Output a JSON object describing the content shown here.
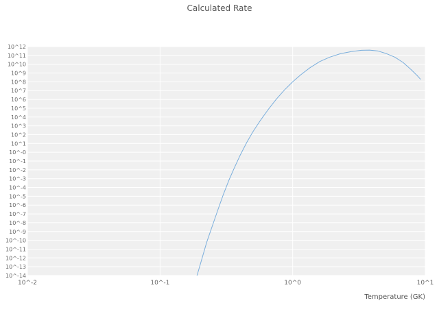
{
  "chart_data": {
    "type": "line",
    "title": "Calculated Rate",
    "xlabel": "Temperature (GK)",
    "ylabel": "",
    "x_scale": "log",
    "y_scale": "log",
    "xlim_log": [
      -2,
      1
    ],
    "ylim_log": [
      -14,
      12
    ],
    "grid": true,
    "legend": "none",
    "x_ticks": [
      "10^-2",
      "10^-1",
      "10^0",
      "10^1"
    ],
    "x_tick_exponents": [
      -2,
      -1,
      0,
      1
    ],
    "y_ticks": [
      "10^12",
      "10^11",
      "10^10",
      "10^9",
      "10^8",
      "10^7",
      "10^6",
      "10^5",
      "10^4",
      "10^3",
      "10^2",
      "10^1",
      "10^-0",
      "10^-1",
      "10^-2",
      "10^-3",
      "10^-4",
      "10^-5",
      "10^-6",
      "10^-7",
      "10^-8",
      "10^-9",
      "10^-10",
      "10^-11",
      "10^-12",
      "10^-13",
      "10^-14"
    ],
    "y_tick_exponents": [
      12,
      11,
      10,
      9,
      8,
      7,
      6,
      5,
      4,
      3,
      2,
      1,
      0,
      -1,
      -2,
      -3,
      -4,
      -5,
      -6,
      -7,
      -8,
      -9,
      -10,
      -11,
      -12,
      -13,
      -14
    ],
    "colors": {
      "line": "#7aaedc",
      "plot_background": "#f0f0f0",
      "grid": "#ffffff",
      "tick_text": "#666666",
      "title_text": "#555555"
    },
    "series": [
      {
        "name": "calculated-rate",
        "points_T_GK_vs_log10_rate": [
          [
            0.19,
            -14.0
          ],
          [
            0.205,
            -12.3
          ],
          [
            0.225,
            -10.2
          ],
          [
            0.25,
            -8.2
          ],
          [
            0.275,
            -6.4
          ],
          [
            0.3,
            -4.8
          ],
          [
            0.33,
            -3.2
          ],
          [
            0.36,
            -1.9
          ],
          [
            0.4,
            -0.4
          ],
          [
            0.45,
            1.1
          ],
          [
            0.5,
            2.3
          ],
          [
            0.57,
            3.6
          ],
          [
            0.65,
            4.8
          ],
          [
            0.75,
            6.0
          ],
          [
            0.87,
            7.1
          ],
          [
            1.0,
            8.0
          ],
          [
            1.15,
            8.8
          ],
          [
            1.35,
            9.6
          ],
          [
            1.6,
            10.3
          ],
          [
            1.9,
            10.8
          ],
          [
            2.3,
            11.2
          ],
          [
            2.8,
            11.45
          ],
          [
            3.3,
            11.58
          ],
          [
            3.8,
            11.6
          ],
          [
            4.4,
            11.5
          ],
          [
            5.1,
            11.2
          ],
          [
            5.9,
            10.8
          ],
          [
            6.8,
            10.2
          ],
          [
            7.8,
            9.4
          ],
          [
            8.7,
            8.7
          ],
          [
            9.2,
            8.3
          ]
        ]
      }
    ]
  }
}
